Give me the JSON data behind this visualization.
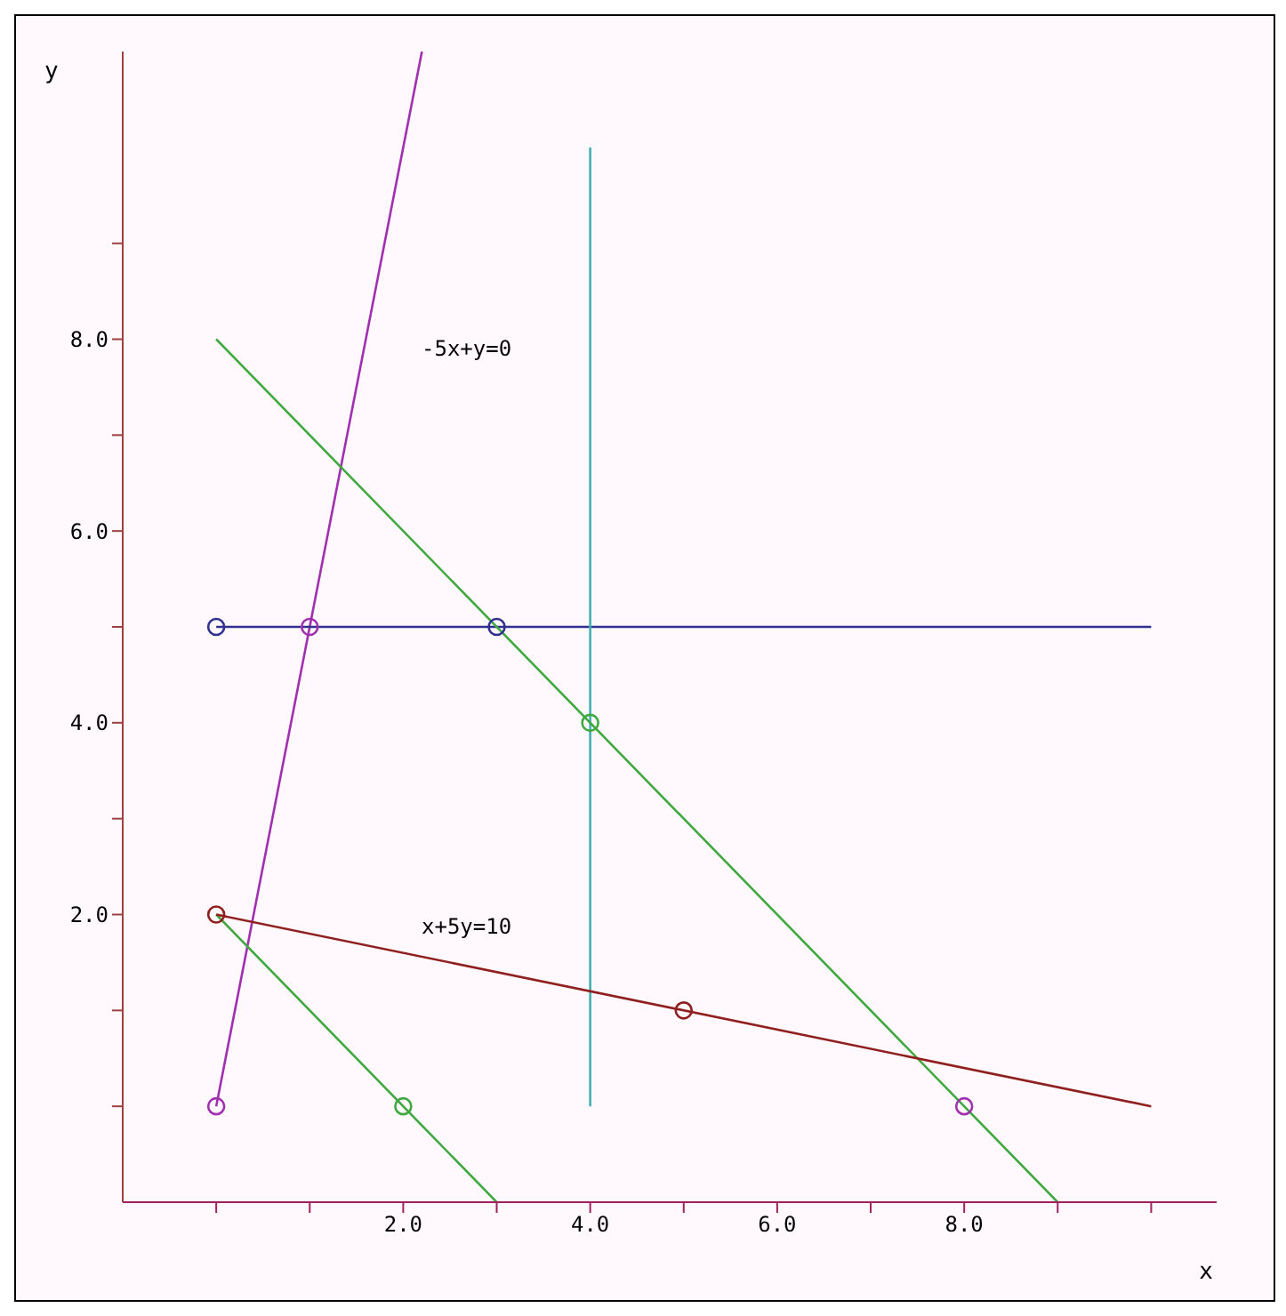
{
  "chart_data": {
    "type": "line",
    "xlabel": "x",
    "ylabel": "y",
    "xlim": [
      -1,
      10.7
    ],
    "ylim": [
      -1,
      11
    ],
    "xticks": [
      {
        "value": 0,
        "label": null
      },
      {
        "value": 1,
        "label": null
      },
      {
        "value": 2,
        "label": "2.0"
      },
      {
        "value": 3,
        "label": null
      },
      {
        "value": 4,
        "label": "4.0"
      },
      {
        "value": 5,
        "label": null
      },
      {
        "value": 6,
        "label": "6.0"
      },
      {
        "value": 7,
        "label": null
      },
      {
        "value": 8,
        "label": "8.0"
      },
      {
        "value": 9,
        "label": null
      },
      {
        "value": 10,
        "label": null
      }
    ],
    "yticks": [
      {
        "value": 0,
        "label": null
      },
      {
        "value": 1,
        "label": null
      },
      {
        "value": 2,
        "label": "2.0"
      },
      {
        "value": 3,
        "label": null
      },
      {
        "value": 4,
        "label": "4.0"
      },
      {
        "value": 5,
        "label": null
      },
      {
        "value": 6,
        "label": "6.0"
      },
      {
        "value": 7,
        "label": null
      },
      {
        "value": 8,
        "label": "8.0"
      },
      {
        "value": 9,
        "label": null
      }
    ],
    "grid": false,
    "legend": false,
    "marker": "none",
    "series": [
      {
        "color": "#a030b0",
        "x": [
          0,
          2.2
        ],
        "values": [
          0,
          11
        ]
      },
      {
        "color": "#303090",
        "x": [
          0,
          10
        ],
        "values": [
          5,
          5
        ]
      },
      {
        "color": "#40b0b0",
        "x": [
          4,
          4
        ],
        "values": [
          0,
          10
        ]
      },
      {
        "color": "#40a840",
        "x": [
          0,
          9
        ],
        "values": [
          8,
          -1
        ]
      },
      {
        "color": "#40a840",
        "x": [
          0,
          3
        ],
        "values": [
          2,
          -1
        ]
      },
      {
        "color": "#902020",
        "x": [
          0,
          10
        ],
        "values": [
          2,
          0
        ]
      },
      {
        "type": "scatter",
        "marker": "circle",
        "x": [
          0,
          1,
          3,
          4,
          2,
          8,
          0,
          5,
          0
        ],
        "values": [
          5,
          5,
          5,
          4,
          0,
          0,
          2,
          1,
          0
        ],
        "colors": [
          "#303090",
          "#a030b0",
          "#303090",
          "#40a840",
          "#40a840",
          "#a030b0",
          "#902020",
          "#902020",
          "#a030b0"
        ]
      }
    ],
    "annotations": [
      "-5x+y=0",
      "x+5y=10"
    ]
  }
}
